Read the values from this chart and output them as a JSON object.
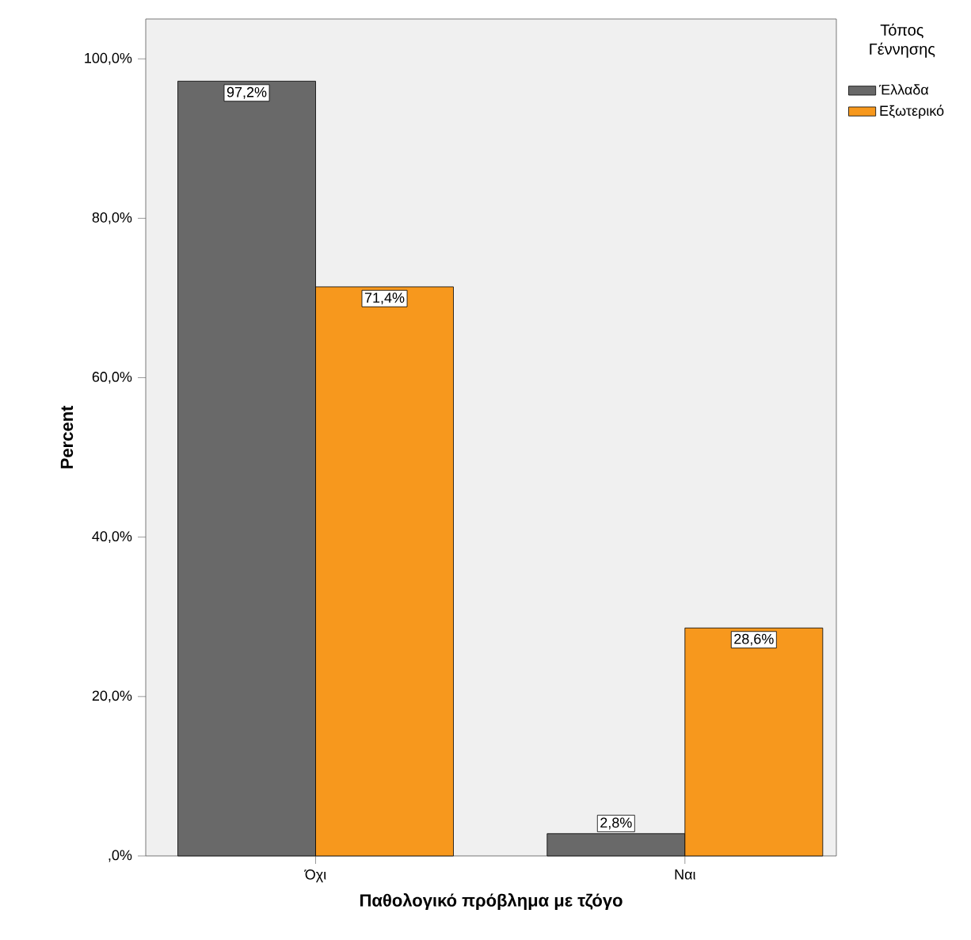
{
  "chart_data": {
    "type": "bar",
    "xlabel": "Παθολογικό πρόβλημα με τζόγο",
    "ylabel": "Percent",
    "legend_title": "Τόπος Γέννησης",
    "categories": [
      "Όχι",
      "Ναι"
    ],
    "series": [
      {
        "name": "Έλλαδα",
        "color": "#696969",
        "values": [
          97.2,
          2.8
        ],
        "value_labels": [
          "97,2%",
          "2,8%"
        ]
      },
      {
        "name": "Εξωτερικό",
        "color": "#f7981d",
        "values": [
          71.4,
          28.6
        ],
        "value_labels": [
          "71,4%",
          "28,6%"
        ]
      }
    ],
    "ylim": [
      0,
      105
    ],
    "yticks": [
      {
        "value": 0,
        "label": ",0%"
      },
      {
        "value": 20,
        "label": "20,0%"
      },
      {
        "value": 40,
        "label": "40,0%"
      },
      {
        "value": 60,
        "label": "60,0%"
      },
      {
        "value": 80,
        "label": "80,0%"
      },
      {
        "value": 100,
        "label": "100,0%"
      }
    ],
    "grid": false,
    "legend": "right"
  }
}
